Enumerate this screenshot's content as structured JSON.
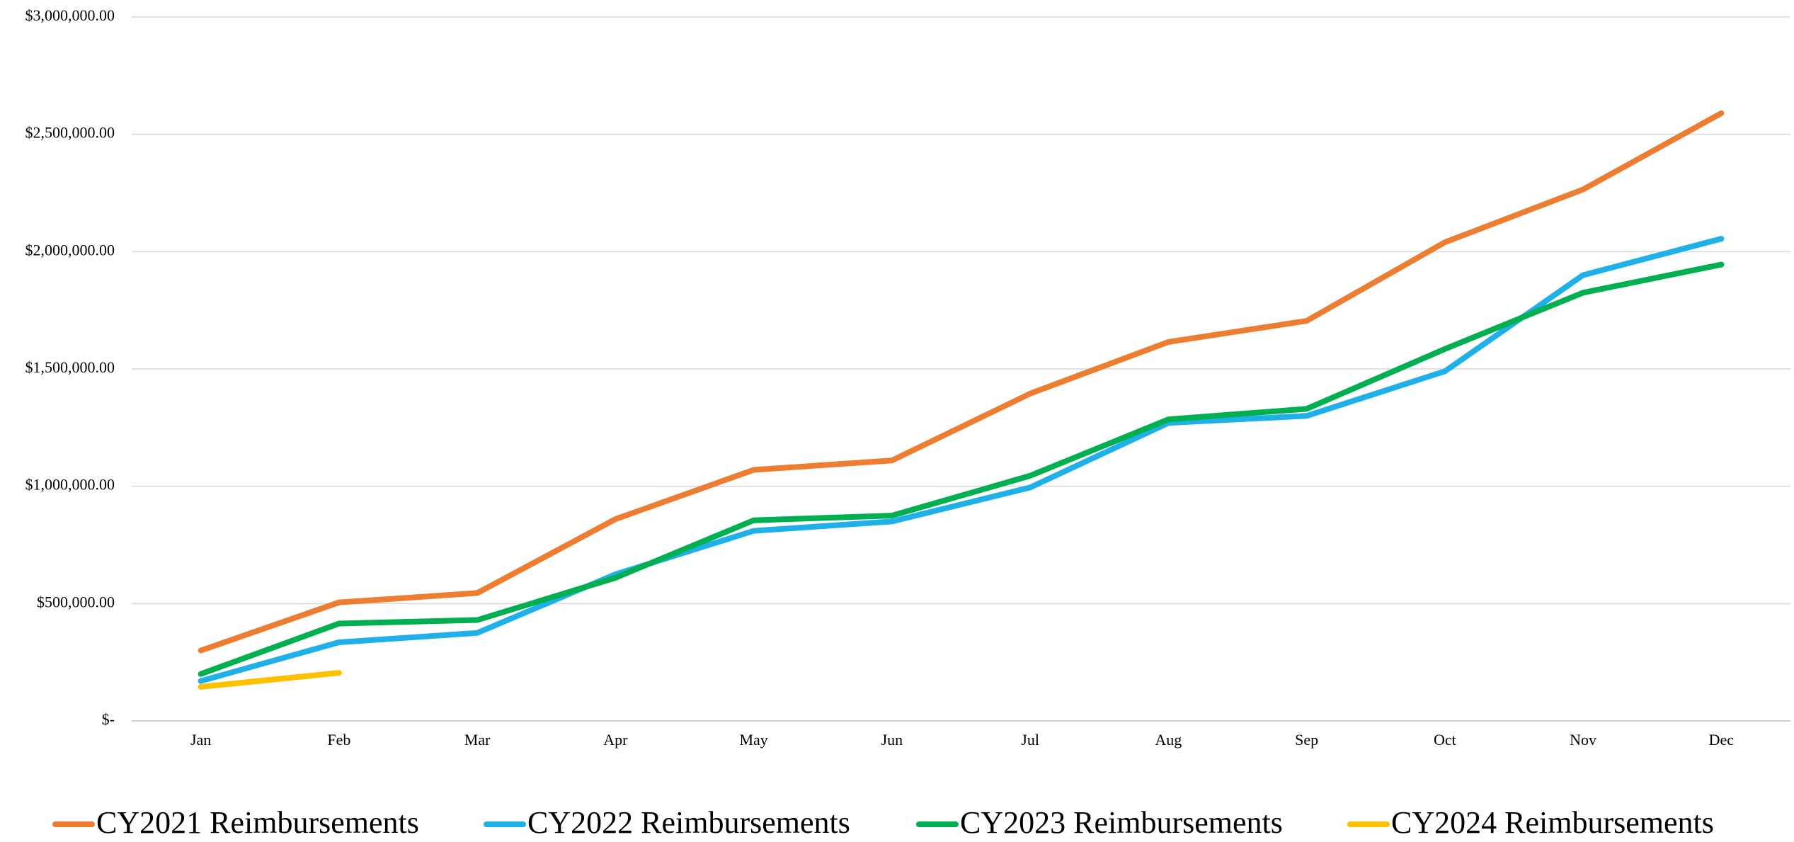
{
  "chart_data": {
    "type": "line",
    "categories": [
      "Jan",
      "Feb",
      "Mar",
      "Apr",
      "May",
      "Jun",
      "Jul",
      "Aug",
      "Sep",
      "Oct",
      "Nov",
      "Dec"
    ],
    "series": [
      {
        "name": "CY2021 Reimbursements",
        "color": "#ed7d31",
        "values": [
          300000,
          505000,
          545000,
          860000,
          1070000,
          1110000,
          1395000,
          1615000,
          1705000,
          2040000,
          2265000,
          2590000
        ]
      },
      {
        "name": "CY2022 Reimbursements",
        "color": "#1fb0ea",
        "values": [
          170000,
          335000,
          375000,
          625000,
          810000,
          850000,
          995000,
          1270000,
          1300000,
          1490000,
          1900000,
          2055000
        ]
      },
      {
        "name": "CY2023 Reimbursements",
        "color": "#00b050",
        "values": [
          200000,
          415000,
          430000,
          610000,
          855000,
          875000,
          1045000,
          1285000,
          1330000,
          1585000,
          1825000,
          1945000
        ]
      },
      {
        "name": "CY2024 Reimbursements",
        "color": "#ffc000",
        "values": [
          145000,
          205000,
          null,
          null,
          null,
          null,
          null,
          null,
          null,
          null,
          null,
          null
        ]
      }
    ],
    "ylim": [
      0,
      3000000
    ],
    "yticks": [
      {
        "value": 0,
        "label": "$-"
      },
      {
        "value": 500000,
        "label": "$500,000.00"
      },
      {
        "value": 1000000,
        "label": "$1,000,000.00"
      },
      {
        "value": 1500000,
        "label": "$1,500,000.00"
      },
      {
        "value": 2000000,
        "label": "$2,000,000.00"
      },
      {
        "value": 2500000,
        "label": "$2,500,000.00"
      },
      {
        "value": 3000000,
        "label": "$3,000,000.00"
      }
    ],
    "grid": true,
    "legend": "bottom"
  }
}
